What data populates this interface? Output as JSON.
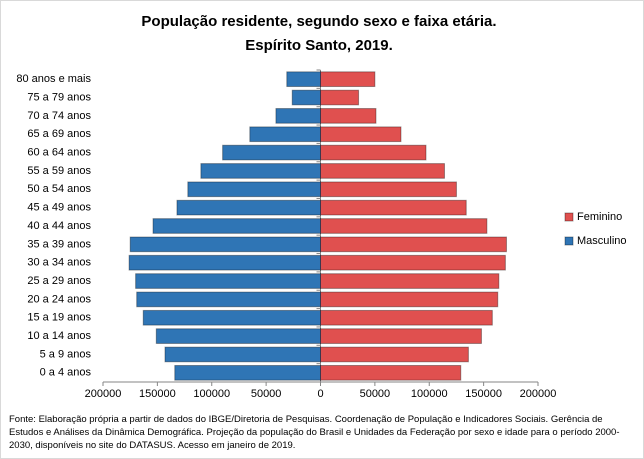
{
  "chart_data": {
    "type": "pyramid",
    "title": "População residente, segundo sexo e faixa etária.",
    "subtitle": "Espírito Santo, 2019.",
    "categories": [
      "80 anos e mais",
      "75 a 79 anos",
      "70 a 74 anos",
      "65 a 69 anos",
      "60 a 64 anos",
      "55 a 59 anos",
      "50 a 54 anos",
      "45 a 49 anos",
      "40 a 44 anos",
      "35 a 39 anos",
      "30 a 34 anos",
      "25 a 29 anos",
      "20 a 24 anos",
      "15 a 19 anos",
      "10 a 14 anos",
      "5 a 9 anos",
      "0 a 4 anos"
    ],
    "series": [
      {
        "name": "Feminino",
        "color": "#e0504f",
        "values": [
          50000,
          35000,
          51000,
          74000,
          97000,
          114000,
          125000,
          134000,
          153000,
          171000,
          170000,
          164000,
          163000,
          158000,
          148000,
          136000,
          129000
        ]
      },
      {
        "name": "Masculino",
        "color": "#2f75b5",
        "values": [
          -31000,
          -26000,
          -41000,
          -65000,
          -90000,
          -110000,
          -122000,
          -132000,
          -154000,
          -175000,
          -176000,
          -170000,
          -169000,
          -163000,
          -151000,
          -143000,
          -134000
        ]
      }
    ],
    "xlim": [
      -200000,
      200000
    ],
    "xticks": [
      {
        "value": -200000,
        "label": "200000"
      },
      {
        "value": -150000,
        "label": "150000"
      },
      {
        "value": -100000,
        "label": "100000"
      },
      {
        "value": -50000,
        "label": "50000"
      },
      0,
      50000,
      100000,
      150000,
      200000
    ],
    "legend": "right",
    "note": "Fonte:  Elaboração própria a partir de dados do  IBGE/Diretoria de Pesquisas. Coordenação de População e Indicadores Sociais. Gerência de Estudos e Análises da Dinâmica Demográfica. Projeção da população do Brasil e Unidades da Federação por sexo e idade para o período 2000-2030, disponíveis no site do DATASUS. Acesso em  janeiro de 2019."
  }
}
